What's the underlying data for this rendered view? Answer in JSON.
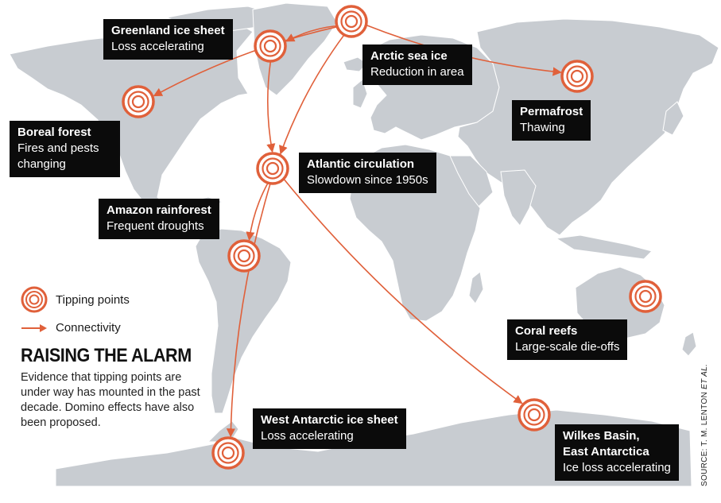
{
  "colors": {
    "accent": "#e0603a",
    "land": "#c8ccd1",
    "ocean": "#ffffff",
    "label_bg": "#0b0b0b",
    "label_text": "#ffffff"
  },
  "tipping_points": [
    {
      "id": "greenland",
      "title": "Greenland ice sheet",
      "subtitle": "Loss accelerating"
    },
    {
      "id": "arctic",
      "title": "Arctic sea ice",
      "subtitle": "Reduction in area"
    },
    {
      "id": "permafrost",
      "title": "Permafrost",
      "subtitle": "Thawing"
    },
    {
      "id": "boreal",
      "title": "Boreal forest",
      "subtitle_lines": [
        "Fires and pests",
        "changing"
      ]
    },
    {
      "id": "atlantic",
      "title": "Atlantic circulation",
      "subtitle": "Slowdown since 1950s"
    },
    {
      "id": "amazon",
      "title": "Amazon rainforest",
      "subtitle": "Frequent droughts"
    },
    {
      "id": "coral",
      "title": "Coral reefs",
      "subtitle": "Large-scale die-offs"
    },
    {
      "id": "west_antarctic",
      "title": "West Antarctic ice sheet",
      "subtitle": "Loss accelerating"
    },
    {
      "id": "wilkes",
      "title_lines": [
        "Wilkes Basin,",
        "East Antarctica"
      ],
      "subtitle": "Ice loss accelerating"
    }
  ],
  "connections": [
    {
      "from": "arctic",
      "to": "greenland"
    },
    {
      "from": "arctic",
      "to": "permafrost"
    },
    {
      "from": "arctic",
      "to": "atlantic"
    },
    {
      "from": "arctic",
      "to": "boreal"
    },
    {
      "from": "greenland",
      "to": "atlantic"
    },
    {
      "from": "atlantic",
      "to": "amazon"
    },
    {
      "from": "atlantic",
      "to": "west_antarctic"
    },
    {
      "from": "atlantic",
      "to": "wilkes"
    }
  ],
  "legend": {
    "tipping_points_label": "Tipping points",
    "connectivity_label": "Connectivity",
    "tipping_points_icon": "concentric-circle-icon",
    "connectivity_icon": "arrow-icon"
  },
  "headline": "RAISING THE ALARM",
  "blurb": "Evidence that tipping points are under way has mounted in the past decade. Domino effects have also been proposed.",
  "source": {
    "prefix": "SOURCE: T. M. LENTON",
    "suffix": "ET AL."
  }
}
